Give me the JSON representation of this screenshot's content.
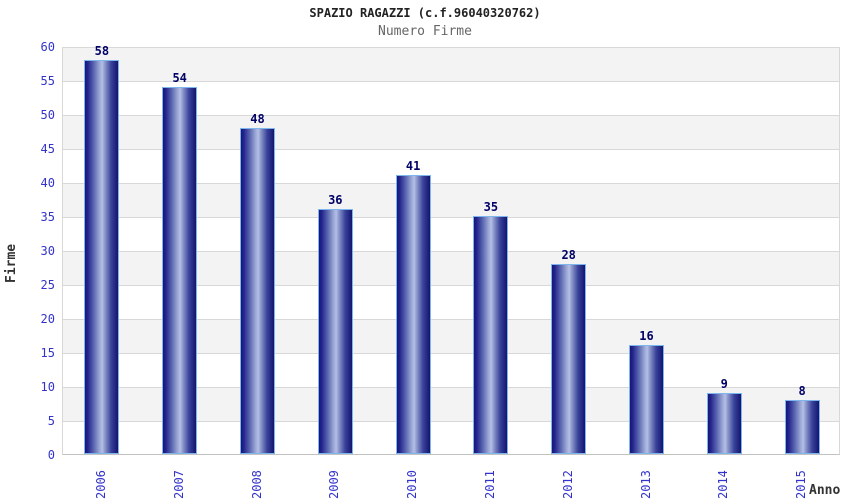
{
  "header": {
    "title": "SPAZIO RAGAZZI (c.f.96040320762)",
    "subtitle": "Numero Firme"
  },
  "chart_data": {
    "type": "bar",
    "title": "SPAZIO RAGAZZI (c.f.96040320762)",
    "subtitle": "Numero Firme",
    "categories": [
      "2006",
      "2007",
      "2008",
      "2009",
      "2010",
      "2011",
      "2012",
      "2013",
      "2014",
      "2015"
    ],
    "values": [
      58,
      54,
      48,
      36,
      41,
      35,
      28,
      16,
      9,
      8
    ],
    "xlabel": "Anno",
    "ylabel": "Firme",
    "ylim": [
      0,
      60
    ],
    "ytick_step": 5,
    "y_ticks": [
      0,
      5,
      10,
      15,
      20,
      25,
      30,
      35,
      40,
      45,
      50,
      55,
      60
    ],
    "grid": true,
    "legend": "none",
    "value_labels_shown": true,
    "colors": {
      "axis_labels": "#3333cc",
      "value_labels": "#000066",
      "bar_dark": "#16167a",
      "bar_light": "#b4bfe6",
      "bar_border": "#7db6ec",
      "band_gray": "#f3f3f3",
      "band_white": "#ffffff",
      "gridline": "#d8d8d8",
      "title": "#222222",
      "subtitle": "#666666",
      "axis_titles": "#333333"
    }
  }
}
